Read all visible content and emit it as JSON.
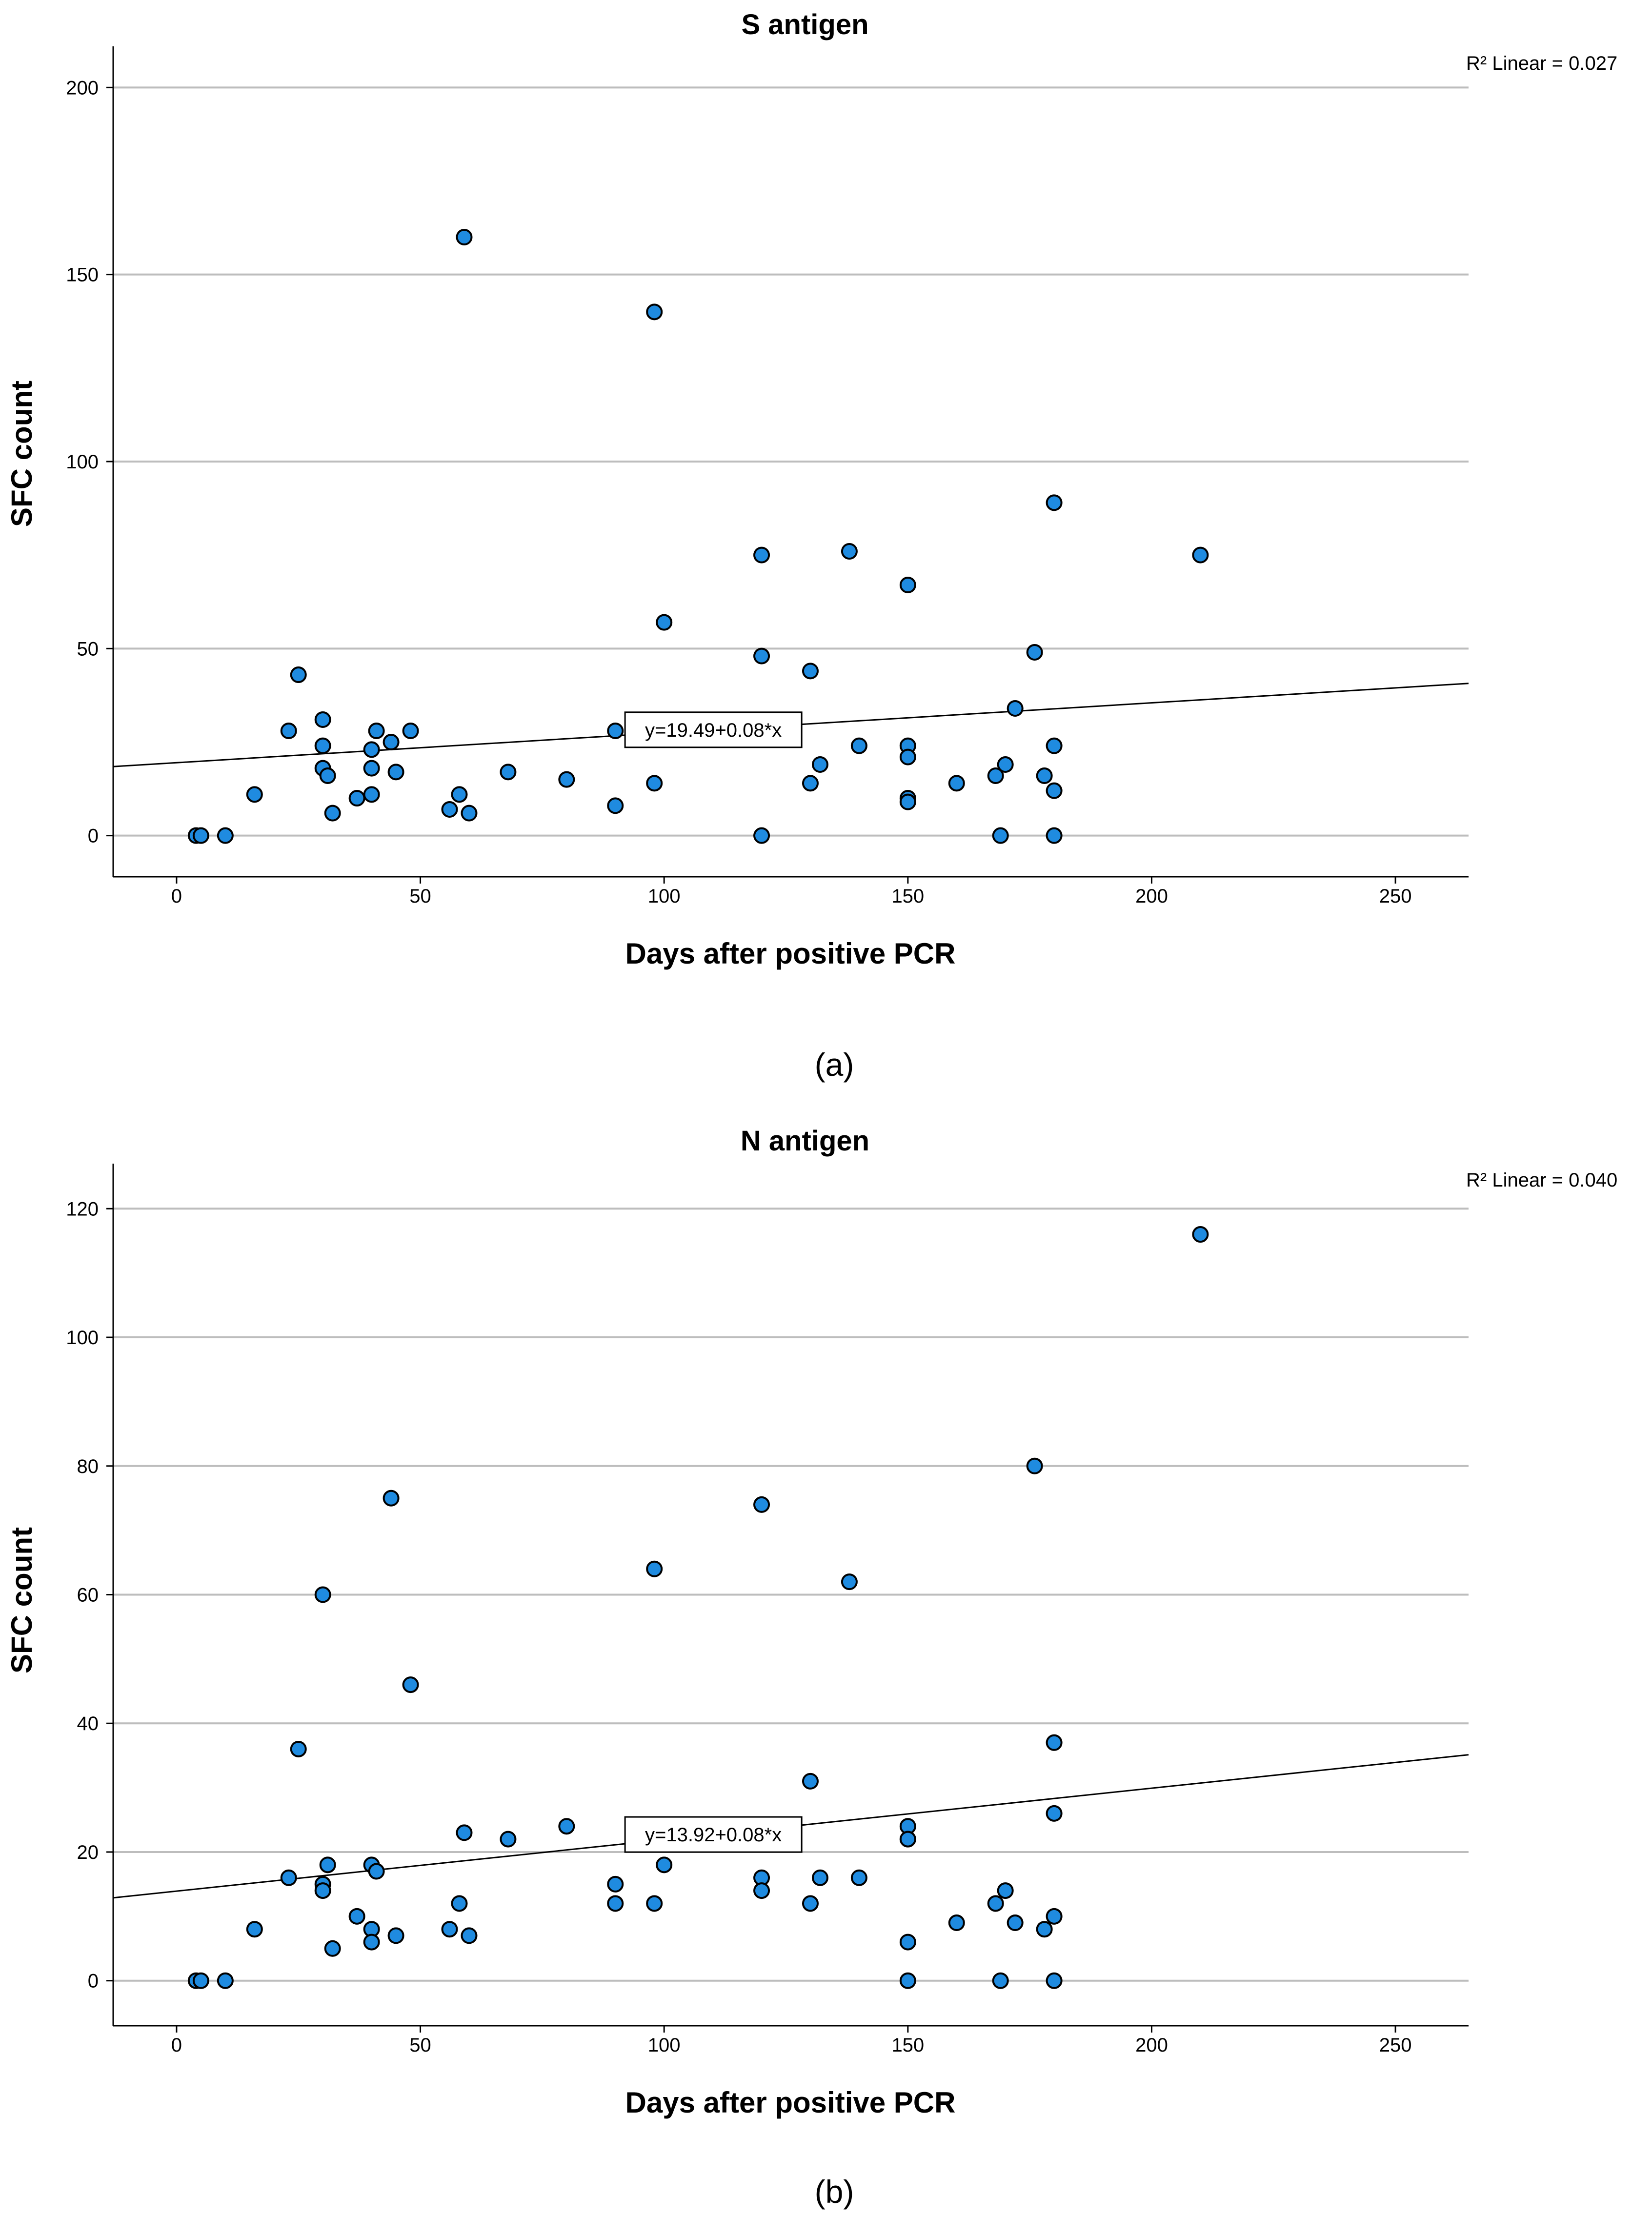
{
  "colors": {
    "gridline": "#bdbdbd",
    "axis": "#000000",
    "marker_fill": "#1f8be0",
    "marker_stroke": "#000000",
    "fit_line": "#000000",
    "background": "#ffffff"
  },
  "chart_data": [
    {
      "id": "a",
      "type": "scatter",
      "title": "S antigen",
      "xlabel": "Days after positive PCR",
      "ylabel": "SFC count",
      "panel_label": "(a)",
      "r2_label": "R² Linear = 0.027",
      "fit_equation": "y=19.49+0.08*x",
      "fit": {
        "intercept": 19.49,
        "slope": 0.08
      },
      "xlim": [
        -13,
        265
      ],
      "ylim": [
        -11,
        211
      ],
      "x_ticks": [
        0,
        50,
        100,
        150,
        200,
        250
      ],
      "y_ticks": [
        0,
        50,
        100,
        150,
        200
      ],
      "grid": "horizontal",
      "points": [
        [
          4,
          0
        ],
        [
          5,
          0
        ],
        [
          10,
          0
        ],
        [
          16,
          11
        ],
        [
          23,
          28
        ],
        [
          25,
          43
        ],
        [
          30,
          31
        ],
        [
          30,
          24
        ],
        [
          30,
          18
        ],
        [
          31,
          16
        ],
        [
          32,
          6
        ],
        [
          37,
          10
        ],
        [
          40,
          23
        ],
        [
          40,
          18
        ],
        [
          40,
          11
        ],
        [
          41,
          28
        ],
        [
          44,
          25
        ],
        [
          45,
          17
        ],
        [
          48,
          28
        ],
        [
          56,
          7
        ],
        [
          58,
          11
        ],
        [
          59,
          160
        ],
        [
          60,
          6
        ],
        [
          68,
          17
        ],
        [
          80,
          15
        ],
        [
          90,
          28
        ],
        [
          90,
          8
        ],
        [
          98,
          140
        ],
        [
          98,
          14
        ],
        [
          100,
          57
        ],
        [
          120,
          75
        ],
        [
          120,
          48
        ],
        [
          120,
          0
        ],
        [
          130,
          44
        ],
        [
          130,
          14
        ],
        [
          132,
          19
        ],
        [
          138,
          76
        ],
        [
          140,
          24
        ],
        [
          150,
          67
        ],
        [
          150,
          24
        ],
        [
          150,
          21
        ],
        [
          150,
          10
        ],
        [
          150,
          9
        ],
        [
          160,
          14
        ],
        [
          168,
          16
        ],
        [
          169,
          0
        ],
        [
          170,
          19
        ],
        [
          172,
          34
        ],
        [
          176,
          49
        ],
        [
          178,
          16
        ],
        [
          180,
          89
        ],
        [
          180,
          24
        ],
        [
          180,
          12
        ],
        [
          180,
          0
        ],
        [
          210,
          75
        ]
      ]
    },
    {
      "id": "b",
      "type": "scatter",
      "title": "N antigen",
      "xlabel": "Days after positive PCR",
      "ylabel": "SFC count",
      "panel_label": "(b)",
      "r2_label": "R² Linear = 0.040",
      "fit_equation": "y=13.92+0.08*x",
      "fit": {
        "intercept": 13.92,
        "slope": 0.08
      },
      "xlim": [
        -13,
        265
      ],
      "ylim": [
        -7,
        127
      ],
      "x_ticks": [
        0,
        50,
        100,
        150,
        200,
        250
      ],
      "y_ticks": [
        0,
        20,
        40,
        60,
        80,
        100,
        120
      ],
      "grid": "horizontal",
      "points": [
        [
          4,
          0
        ],
        [
          5,
          0
        ],
        [
          10,
          0
        ],
        [
          16,
          8
        ],
        [
          23,
          16
        ],
        [
          25,
          36
        ],
        [
          30,
          60
        ],
        [
          30,
          15
        ],
        [
          30,
          14
        ],
        [
          31,
          18
        ],
        [
          32,
          5
        ],
        [
          37,
          10
        ],
        [
          40,
          18
        ],
        [
          40,
          8
        ],
        [
          40,
          6
        ],
        [
          41,
          17
        ],
        [
          44,
          75
        ],
        [
          45,
          7
        ],
        [
          48,
          46
        ],
        [
          56,
          8
        ],
        [
          58,
          12
        ],
        [
          59,
          23
        ],
        [
          60,
          7
        ],
        [
          68,
          22
        ],
        [
          80,
          24
        ],
        [
          90,
          15
        ],
        [
          90,
          12
        ],
        [
          98,
          64
        ],
        [
          98,
          12
        ],
        [
          100,
          18
        ],
        [
          120,
          74
        ],
        [
          120,
          16
        ],
        [
          120,
          14
        ],
        [
          130,
          31
        ],
        [
          130,
          12
        ],
        [
          132,
          16
        ],
        [
          138,
          62
        ],
        [
          140,
          16
        ],
        [
          150,
          24
        ],
        [
          150,
          22
        ],
        [
          150,
          22
        ],
        [
          150,
          6
        ],
        [
          150,
          0
        ],
        [
          160,
          9
        ],
        [
          168,
          12
        ],
        [
          169,
          0
        ],
        [
          170,
          14
        ],
        [
          172,
          9
        ],
        [
          176,
          80
        ],
        [
          178,
          8
        ],
        [
          180,
          37
        ],
        [
          180,
          26
        ],
        [
          180,
          10
        ],
        [
          180,
          0
        ],
        [
          210,
          116
        ]
      ]
    }
  ]
}
